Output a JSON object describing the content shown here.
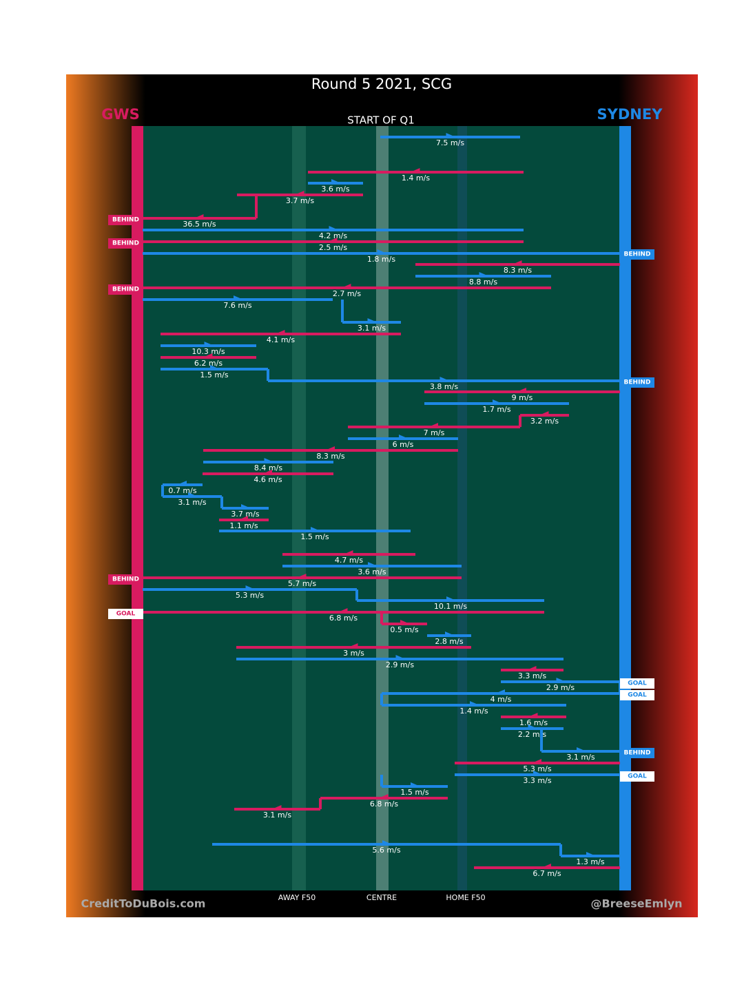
{
  "header": {
    "title": "Round 5 2021, SCG",
    "left_team": "GWS",
    "right_team": "SYDNEY",
    "subtitle": "START OF Q1"
  },
  "zones": [
    "AWAY F50",
    "CENTRE",
    "HOME F50"
  ],
  "credits": {
    "left": "CreditToDuBois.com",
    "right": "@BreeseEmlyn"
  },
  "possessions": [
    "7.5 m/s",
    "1.4 m/s",
    "3.6 m/s",
    "3.7 m/s",
    "36.5 m/s",
    "4.2 m/s",
    "2.5 m/s",
    "1.8 m/s",
    "8.3 m/s",
    "8.8 m/s",
    "2.7 m/s",
    "7.6 m/s",
    "3.1 m/s",
    "4.1 m/s",
    "10.3 m/s",
    "6.2 m/s",
    "1.5 m/s",
    "3.8 m/s",
    "9 m/s",
    "1.7 m/s",
    "3.2 m/s",
    "7 m/s",
    "6 m/s",
    "8.3 m/s",
    "8.4 m/s",
    "4.6 m/s",
    "0.7 m/s",
    "3.1 m/s",
    "3.7 m/s",
    "1.1 m/s",
    "1.5 m/s",
    "4.7 m/s",
    "3.6 m/s",
    "5.7 m/s",
    "5.3 m/s",
    "10.1 m/s",
    "6.8 m/s",
    "0.5 m/s",
    "2.8 m/s",
    "3 m/s",
    "2.9 m/s",
    "3.3 m/s",
    "2.9 m/s",
    "4 m/s",
    "1.4 m/s",
    "1.6 m/s",
    "2.2 m/s",
    "3.1 m/s",
    "5.3 m/s",
    "3.3 m/s",
    "1.5 m/s",
    "6.8 m/s",
    "3.1 m/s",
    "5.6 m/s",
    "1.3 m/s",
    "6.7 m/s"
  ],
  "outcomes": [
    "BEHIND",
    "BEHIND",
    "BEHIND",
    "BEHIND",
    "GOAL",
    "BEHIND",
    "BEHIND",
    "BEHIND",
    "GOAL",
    "GOAL",
    "GOAL"
  ]
}
